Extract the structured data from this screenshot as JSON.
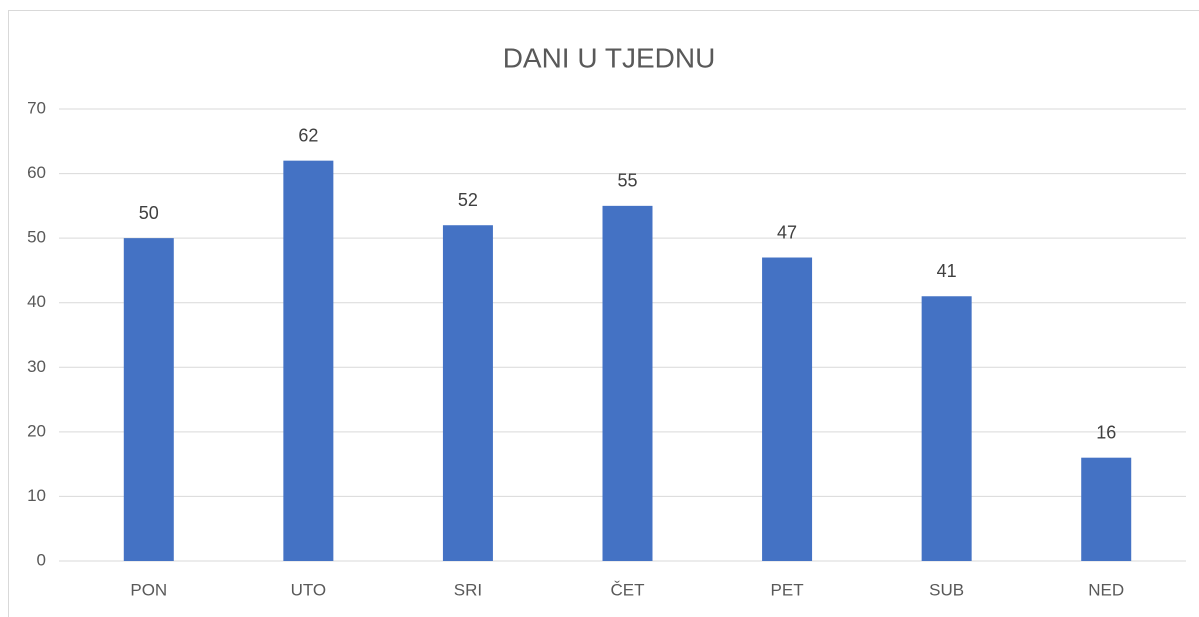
{
  "chart_data": {
    "type": "bar",
    "title": "DANI U TJEDNU",
    "categories": [
      "PON",
      "UTO",
      "SRI",
      "ČET",
      "PET",
      "SUB",
      "NED"
    ],
    "values": [
      50,
      62,
      52,
      55,
      47,
      41,
      16
    ],
    "color": "#4472c4",
    "ylim": [
      0,
      70
    ],
    "yticks": [
      0,
      10,
      20,
      30,
      40,
      50,
      60,
      70
    ],
    "grid": true
  }
}
